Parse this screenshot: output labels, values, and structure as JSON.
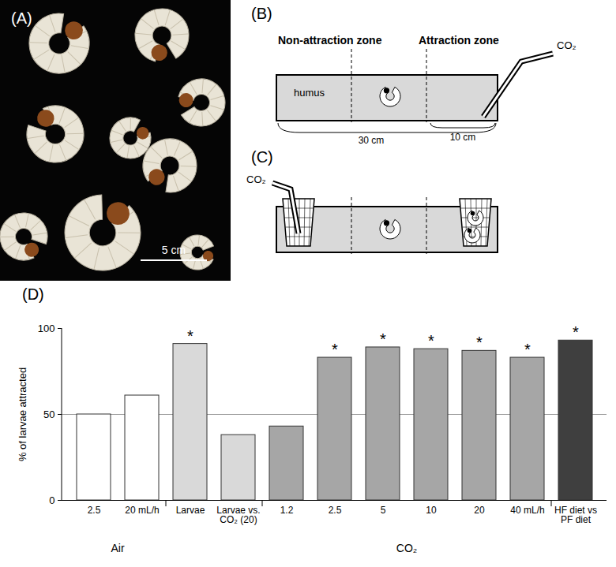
{
  "panels": {
    "A": {
      "label": "(A)",
      "scale_bar": "5 cm"
    },
    "B": {
      "label": "(B)",
      "zones": [
        "Non-attraction zone",
        "Attraction zone"
      ],
      "gas": "CO₂",
      "substrate": "humus",
      "lengths": [
        "30 cm",
        "10 cm"
      ]
    },
    "C": {
      "label": "(C)",
      "gas": "CO₂"
    }
  },
  "chart_data": {
    "type": "bar",
    "title": "(D)",
    "ylabel": "% of larvae attracted",
    "categories": [
      "2.5",
      "20 mL/h",
      "Larvae",
      "Larvae vs. CO₂ (20)",
      "1.2",
      "2.5",
      "5",
      "10",
      "20",
      "40 mL/h",
      "HF diet vs PF diet"
    ],
    "groups": [
      "Air",
      "Air",
      null,
      null,
      "CO₂",
      "CO₂",
      "CO₂",
      "CO₂",
      "CO₂",
      "CO₂",
      null
    ],
    "values": [
      50,
      61,
      91,
      38,
      43,
      83,
      89,
      88,
      87,
      83,
      93
    ],
    "significance": [
      null,
      null,
      "*",
      null,
      null,
      "*",
      "*",
      "*",
      "*",
      "*",
      "*"
    ],
    "colors": [
      "#ffffff",
      "#ffffff",
      "#d9d9d9",
      "#d9d9d9",
      "#a6a6a6",
      "#a6a6a6",
      "#a6a6a6",
      "#a6a6a6",
      "#a6a6a6",
      "#a6a6a6",
      "#3f3f3f"
    ],
    "hline": 50,
    "ylim": [
      0,
      100
    ],
    "yticks": [
      0,
      50,
      100
    ]
  }
}
